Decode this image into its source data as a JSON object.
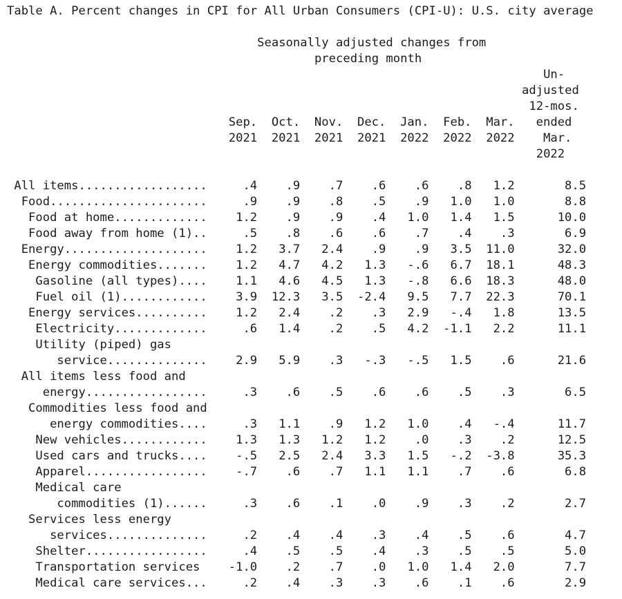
{
  "title": "Table A. Percent changes in CPI for All Urban Consumers (CPI-U): U.S. city average",
  "header": {
    "group_title_line1": "Seasonally adjusted changes from",
    "group_title_line2": "preceding month",
    "unadjusted_lines": [
      "Un-",
      "adjusted",
      "12-mos.",
      "ended",
      "Mar.",
      "2022"
    ],
    "month_columns": [
      {
        "month": "Sep.",
        "year": "2021"
      },
      {
        "month": "Oct.",
        "year": "2021"
      },
      {
        "month": "Nov.",
        "year": "2021"
      },
      {
        "month": "Dec.",
        "year": "2021"
      },
      {
        "month": "Jan.",
        "year": "2022"
      },
      {
        "month": "Feb.",
        "year": "2022"
      },
      {
        "month": "Mar.",
        "year": "2022"
      }
    ]
  },
  "table": {
    "rows": [
      {
        "label_lines": [
          " All items.................."
        ],
        "values": [
          ".4",
          ".9",
          ".7",
          ".6",
          ".6",
          ".8",
          "1.2"
        ],
        "unadj_12mo": "8.5"
      },
      {
        "label_lines": [
          "  Food......................"
        ],
        "values": [
          ".9",
          ".9",
          ".8",
          ".5",
          ".9",
          "1.0",
          "1.0"
        ],
        "unadj_12mo": "8.8"
      },
      {
        "label_lines": [
          "   Food at home............."
        ],
        "values": [
          "1.2",
          ".9",
          ".9",
          ".4",
          "1.0",
          "1.4",
          "1.5"
        ],
        "unadj_12mo": "10.0"
      },
      {
        "label_lines": [
          "   Food away from home (1).."
        ],
        "values": [
          ".5",
          ".8",
          ".6",
          ".6",
          ".7",
          ".4",
          ".3"
        ],
        "unadj_12mo": "6.9"
      },
      {
        "label_lines": [
          "  Energy...................."
        ],
        "values": [
          "1.2",
          "3.7",
          "2.4",
          ".9",
          ".9",
          "3.5",
          "11.0"
        ],
        "unadj_12mo": "32.0"
      },
      {
        "label_lines": [
          "   Energy commodities......."
        ],
        "values": [
          "1.2",
          "4.7",
          "4.2",
          "1.3",
          "-.6",
          "6.7",
          "18.1"
        ],
        "unadj_12mo": "48.3"
      },
      {
        "label_lines": [
          "    Gasoline (all types)...."
        ],
        "values": [
          "1.1",
          "4.6",
          "4.5",
          "1.3",
          "-.8",
          "6.6",
          "18.3"
        ],
        "unadj_12mo": "48.0"
      },
      {
        "label_lines": [
          "    Fuel oil (1)............"
        ],
        "values": [
          "3.9",
          "12.3",
          "3.5",
          "-2.4",
          "9.5",
          "7.7",
          "22.3"
        ],
        "unadj_12mo": "70.1"
      },
      {
        "label_lines": [
          "   Energy services.........."
        ],
        "values": [
          "1.2",
          "2.4",
          ".2",
          ".3",
          "2.9",
          "-.4",
          "1.8"
        ],
        "unadj_12mo": "13.5"
      },
      {
        "label_lines": [
          "    Electricity............."
        ],
        "values": [
          ".6",
          "1.4",
          ".2",
          ".5",
          "4.2",
          "-1.1",
          "2.2"
        ],
        "unadj_12mo": "11.1"
      },
      {
        "label_lines": [
          "    Utility (piped) gas",
          "       service.............."
        ],
        "values": [
          "2.9",
          "5.9",
          ".3",
          "-.3",
          "-.5",
          "1.5",
          ".6"
        ],
        "unadj_12mo": "21.6"
      },
      {
        "label_lines": [
          "  All items less food and",
          "     energy................."
        ],
        "values": [
          ".3",
          ".6",
          ".5",
          ".6",
          ".6",
          ".5",
          ".3"
        ],
        "unadj_12mo": "6.5"
      },
      {
        "label_lines": [
          "   Commodities less food and",
          "      energy commodities...."
        ],
        "values": [
          ".3",
          "1.1",
          ".9",
          "1.2",
          "1.0",
          ".4",
          "-.4"
        ],
        "unadj_12mo": "11.7"
      },
      {
        "label_lines": [
          "    New vehicles............"
        ],
        "values": [
          "1.3",
          "1.3",
          "1.2",
          "1.2",
          ".0",
          ".3",
          ".2"
        ],
        "unadj_12mo": "12.5"
      },
      {
        "label_lines": [
          "    Used cars and trucks...."
        ],
        "values": [
          "-.5",
          "2.5",
          "2.4",
          "3.3",
          "1.5",
          "-.2",
          "-3.8"
        ],
        "unadj_12mo": "35.3"
      },
      {
        "label_lines": [
          "    Apparel................."
        ],
        "values": [
          "-.7",
          ".6",
          ".7",
          "1.1",
          "1.1",
          ".7",
          ".6"
        ],
        "unadj_12mo": "6.8"
      },
      {
        "label_lines": [
          "    Medical care",
          "       commodities (1)......"
        ],
        "values": [
          ".3",
          ".6",
          ".1",
          ".0",
          ".9",
          ".3",
          ".2"
        ],
        "unadj_12mo": "2.7"
      },
      {
        "label_lines": [
          "   Services less energy",
          "      services.............."
        ],
        "values": [
          ".2",
          ".4",
          ".4",
          ".3",
          ".4",
          ".5",
          ".6"
        ],
        "unadj_12mo": "4.7"
      },
      {
        "label_lines": [
          "    Shelter................."
        ],
        "values": [
          ".4",
          ".5",
          ".5",
          ".4",
          ".3",
          ".5",
          ".5"
        ],
        "unadj_12mo": "5.0"
      },
      {
        "label_lines": [
          "    Transportation services"
        ],
        "values": [
          "-1.0",
          ".2",
          ".7",
          ".0",
          "1.0",
          "1.4",
          "2.0"
        ],
        "unadj_12mo": "7.7"
      },
      {
        "label_lines": [
          "    Medical care services..."
        ],
        "values": [
          ".2",
          ".4",
          ".3",
          ".3",
          ".6",
          ".1",
          ".6"
        ],
        "unadj_12mo": "2.9"
      }
    ]
  },
  "colors": {
    "text": "#1c1c1c",
    "background": "#ffffff"
  }
}
